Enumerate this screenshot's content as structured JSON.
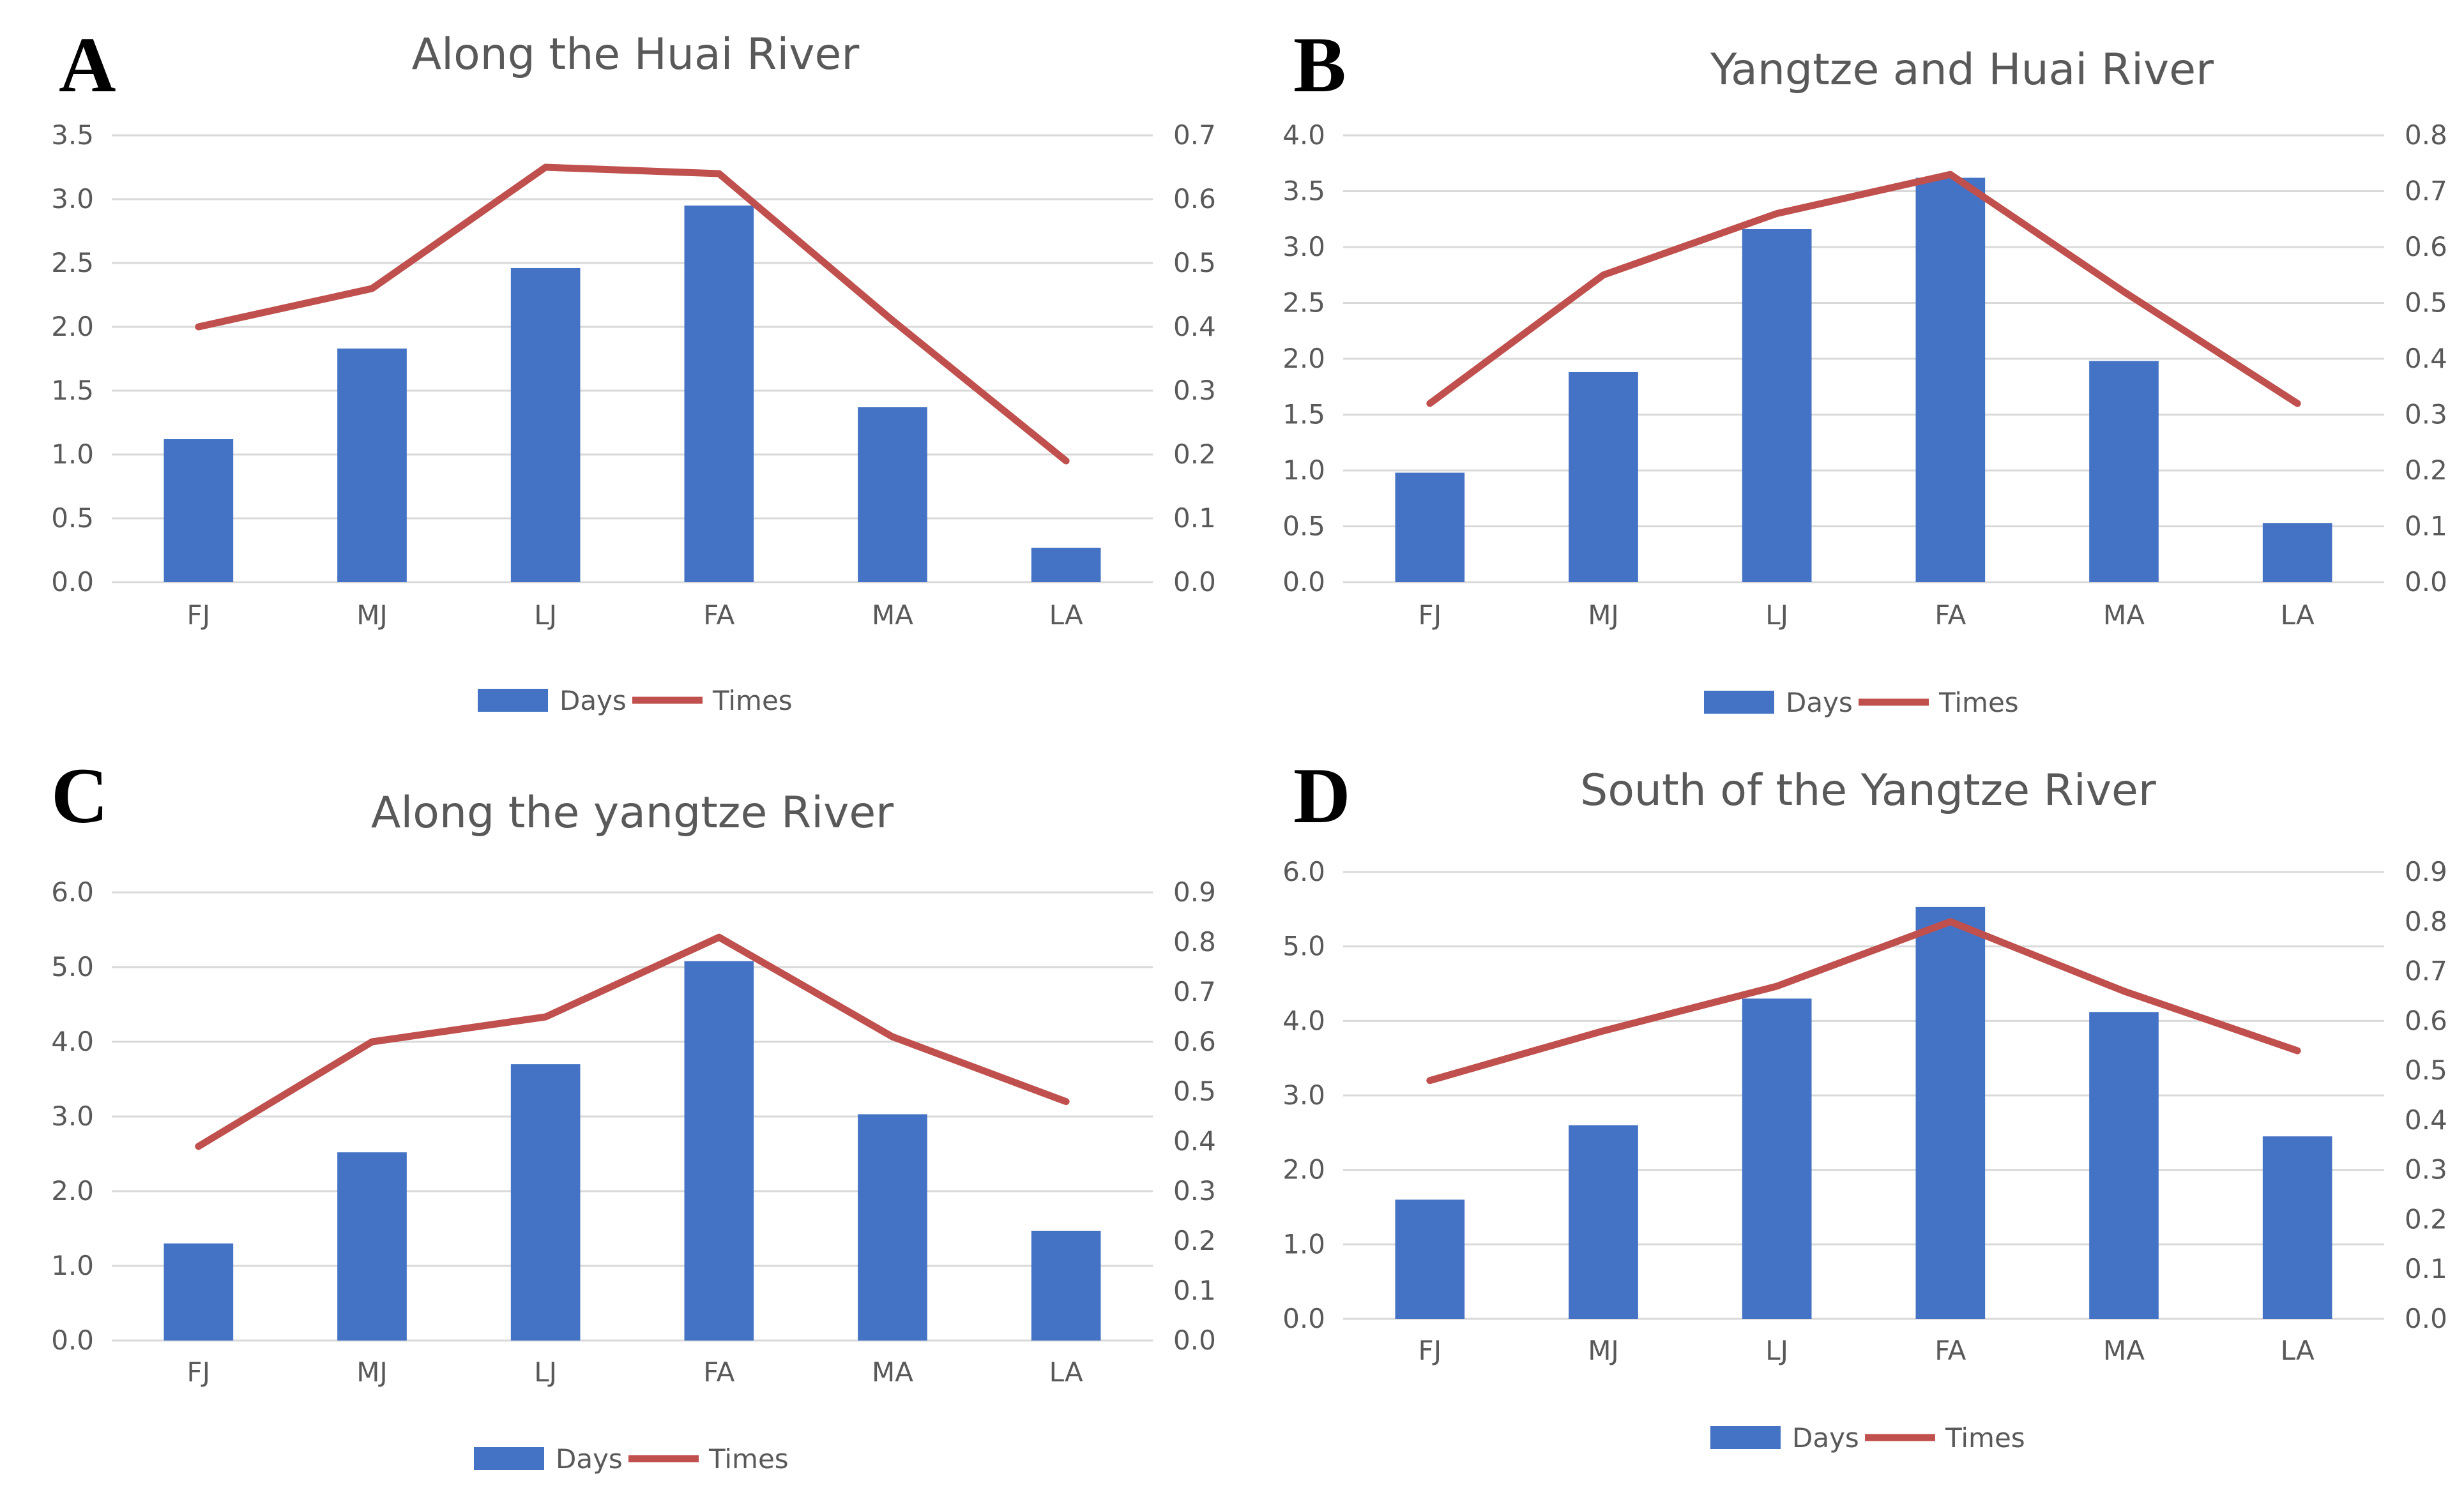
{
  "colors": {
    "days": "#4472C4",
    "times": "#C0504D",
    "grid": "#D9D9D9",
    "text": "#595959"
  },
  "chart_data": [
    {
      "id": "A",
      "type": "bar+line",
      "title": "Along the Huai River",
      "categories": [
        "FJ",
        "MJ",
        "LJ",
        "FA",
        "MA",
        "LA"
      ],
      "series": [
        {
          "name": "Days",
          "type": "bar",
          "axis": "left",
          "values": [
            1.12,
            1.83,
            2.46,
            2.95,
            1.37,
            0.27
          ]
        },
        {
          "name": "Times",
          "type": "line",
          "axis": "right",
          "values": [
            0.4,
            0.46,
            0.65,
            0.64,
            0.41,
            0.19
          ]
        }
      ],
      "yleft": {
        "min": 0,
        "max": 3.5,
        "step": 0.5,
        "decimals": 1
      },
      "yright": {
        "min": 0,
        "max": 0.7,
        "step": 0.1,
        "decimals": 1
      },
      "legend": [
        "Days",
        "Times"
      ],
      "legend_position": "bottom"
    },
    {
      "id": "B",
      "type": "bar+line",
      "title": "Yangtze and Huai River",
      "categories": [
        "FJ",
        "MJ",
        "LJ",
        "FA",
        "MA",
        "LA"
      ],
      "series": [
        {
          "name": "Days",
          "type": "bar",
          "axis": "left",
          "values": [
            0.98,
            1.88,
            3.16,
            3.62,
            1.98,
            0.53
          ]
        },
        {
          "name": "Times",
          "type": "line",
          "axis": "right",
          "values": [
            0.32,
            0.55,
            0.66,
            0.73,
            0.52,
            0.32
          ]
        }
      ],
      "yleft": {
        "min": 0,
        "max": 4.0,
        "step": 0.5,
        "decimals": 1
      },
      "yright": {
        "min": 0,
        "max": 0.8,
        "step": 0.1,
        "decimals": 1
      },
      "legend": [
        "Days",
        "Times"
      ],
      "legend_position": "bottom"
    },
    {
      "id": "C",
      "type": "bar+line",
      "title": "Along the yangtze River",
      "categories": [
        "FJ",
        "MJ",
        "LJ",
        "FA",
        "MA",
        "LA"
      ],
      "series": [
        {
          "name": "Days",
          "type": "bar",
          "axis": "left",
          "values": [
            1.3,
            2.52,
            3.7,
            5.08,
            3.03,
            1.47
          ]
        },
        {
          "name": "Times",
          "type": "line",
          "axis": "right",
          "values": [
            0.39,
            0.6,
            0.65,
            0.81,
            0.61,
            0.48
          ]
        }
      ],
      "yleft": {
        "min": 0,
        "max": 6.0,
        "step": 1.0,
        "decimals": 1
      },
      "yright": {
        "min": 0,
        "max": 0.9,
        "step": 0.1,
        "decimals": 1
      },
      "legend": [
        "Days",
        "Times"
      ],
      "legend_position": "bottom"
    },
    {
      "id": "D",
      "type": "bar+line",
      "title": "South of the Yangtze River",
      "categories": [
        "FJ",
        "MJ",
        "LJ",
        "FA",
        "MA",
        "LA"
      ],
      "series": [
        {
          "name": "Days",
          "type": "bar",
          "axis": "left",
          "values": [
            1.6,
            2.6,
            4.3,
            5.53,
            4.12,
            2.45
          ]
        },
        {
          "name": "Times",
          "type": "line",
          "axis": "right",
          "values": [
            0.48,
            0.58,
            0.67,
            0.8,
            0.66,
            0.54
          ]
        }
      ],
      "yleft": {
        "min": 0,
        "max": 6.0,
        "step": 1.0,
        "decimals": 1
      },
      "yright": {
        "min": 0,
        "max": 0.9,
        "step": 0.1,
        "decimals": 1
      },
      "legend": [
        "Days",
        "Times"
      ],
      "legend_position": "bottom"
    }
  ]
}
